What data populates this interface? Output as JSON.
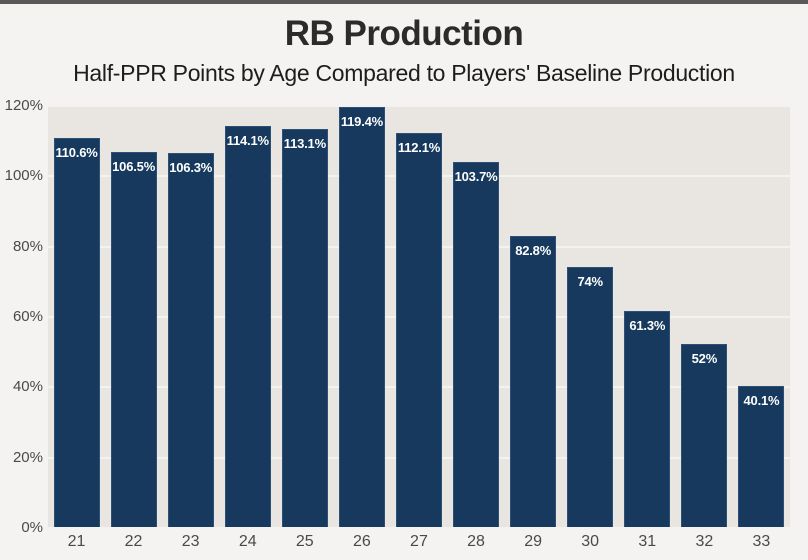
{
  "page": {
    "background_color": "#f4f3f1",
    "top_strip_color": "#58585a"
  },
  "header": {
    "title": "RB Production",
    "subtitle": "Half-PPR Points by Age Compared to Players' Baseline Production"
  },
  "chart_data": {
    "type": "bar",
    "title": "RB Production",
    "subtitle": "Half-PPR Points by Age Compared to Players' Baseline Production",
    "xlabel": "",
    "ylabel": "",
    "categories": [
      "21",
      "22",
      "23",
      "24",
      "25",
      "26",
      "27",
      "28",
      "29",
      "30",
      "31",
      "32",
      "33"
    ],
    "values": [
      110.6,
      106.5,
      106.3,
      114.1,
      113.1,
      119.4,
      112.1,
      103.7,
      82.8,
      74,
      61.3,
      52,
      40.1
    ],
    "value_labels": [
      "110.6%",
      "106.5%",
      "106.3%",
      "114.1%",
      "113.1%",
      "119.4%",
      "112.1%",
      "103.7%",
      "82.8%",
      "74%",
      "61.3%",
      "52%",
      "40.1%"
    ],
    "y_tick_labels": [
      "120%",
      "100%",
      "80%",
      "60%",
      "40%",
      "20%",
      "0%"
    ],
    "ylim": [
      0,
      120
    ],
    "grid": "horizontal",
    "legend": "none",
    "colors": {
      "bar_fill": "#16395d",
      "bar_border": "#2d5176",
      "plot_background": "#e9e6e2",
      "gridline": "#f4f2ef",
      "value_label_text": "#ffffff",
      "axis_text": "#4a4a4a",
      "title_text": "#2b2b2b"
    }
  }
}
